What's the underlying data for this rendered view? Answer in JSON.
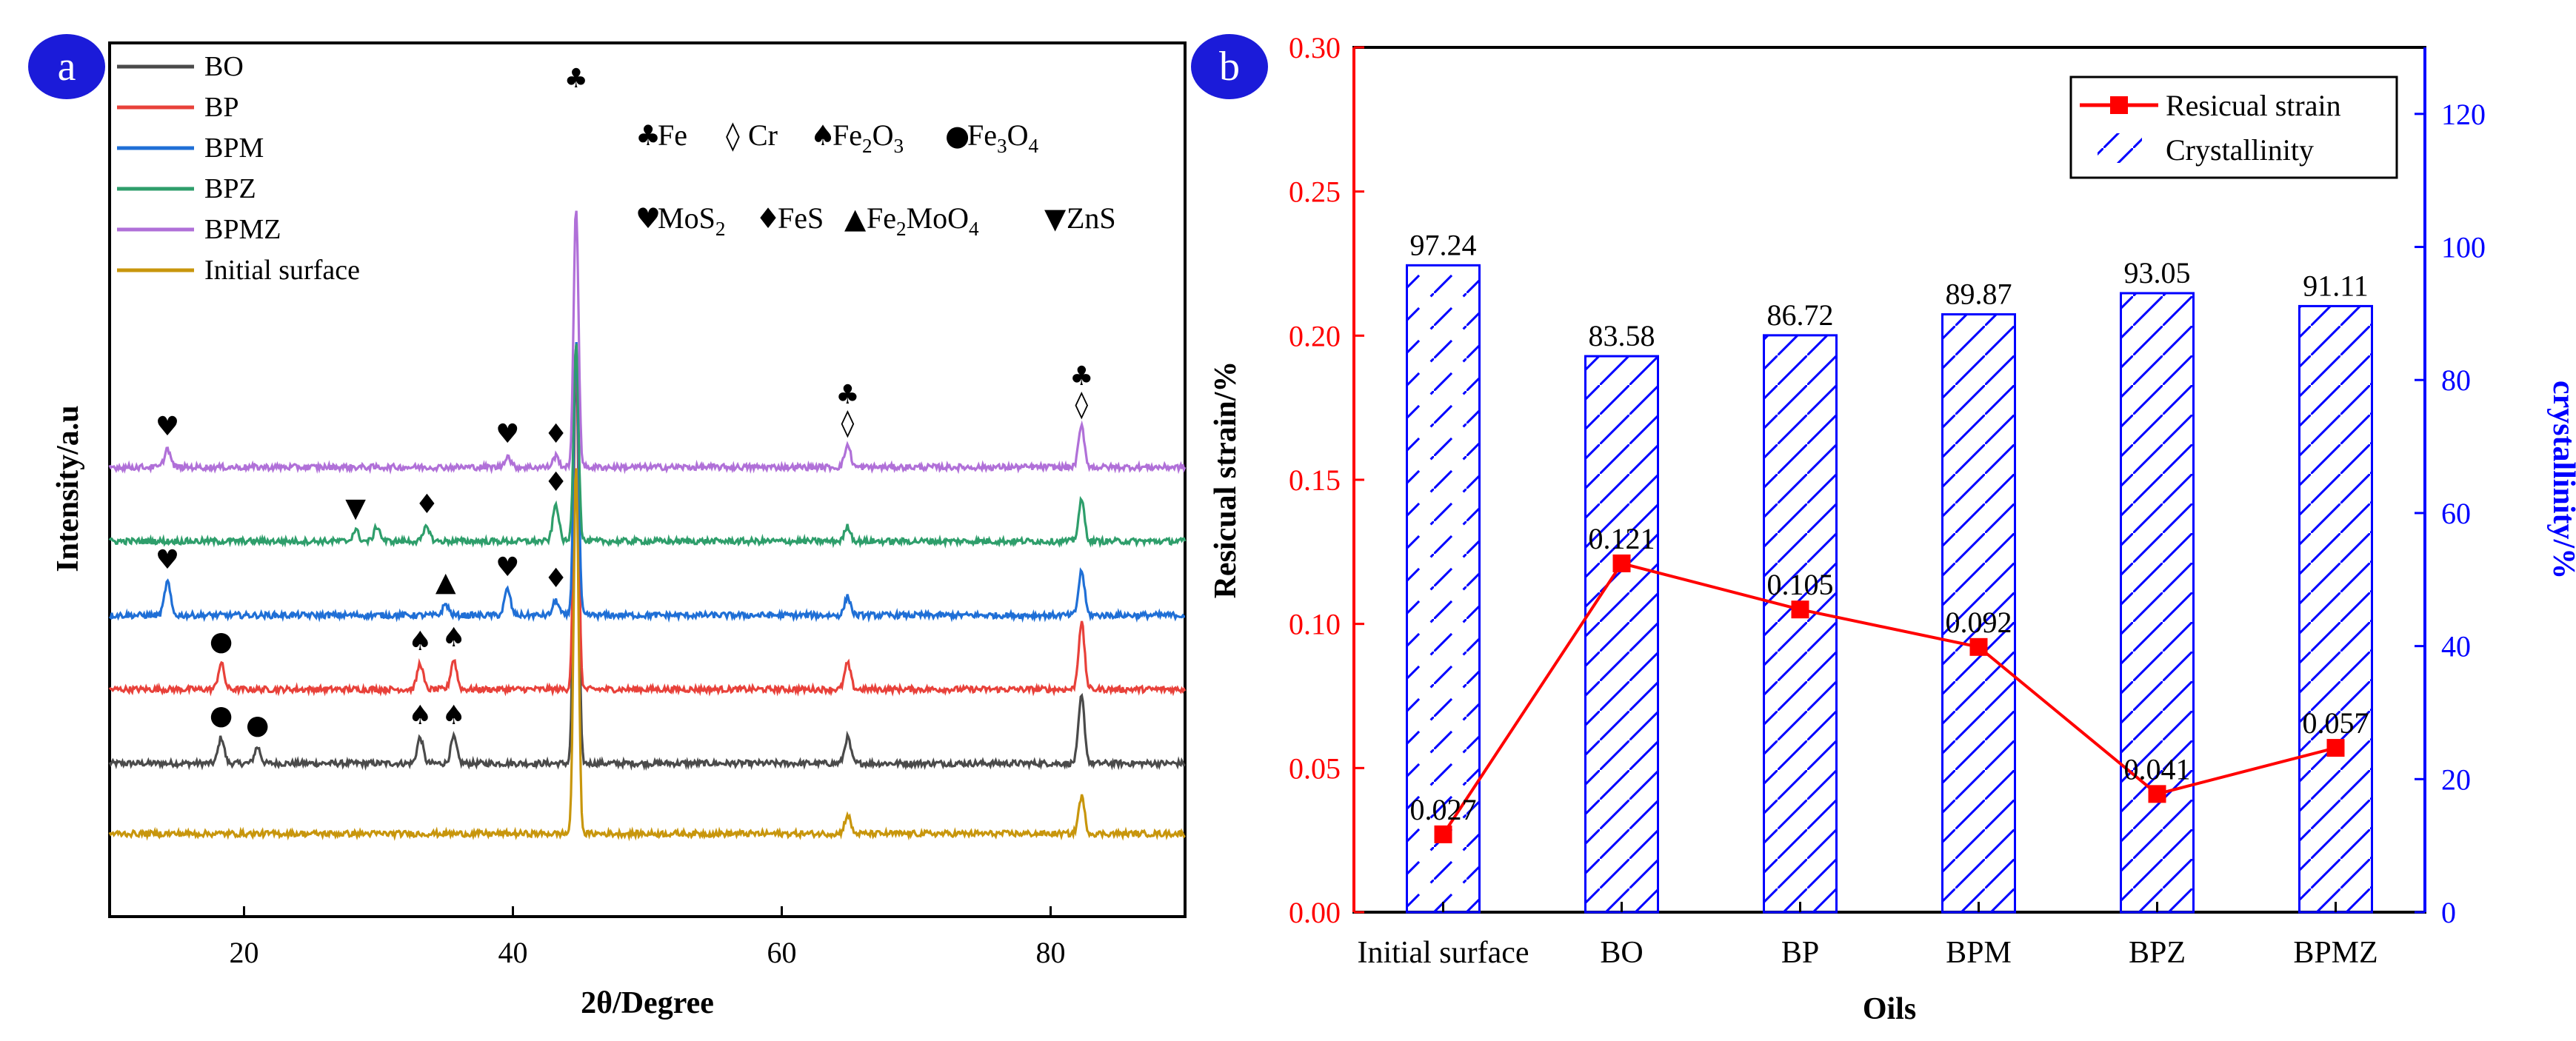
{
  "panels": {
    "a": {
      "label": "a"
    },
    "b": {
      "label": "b"
    }
  },
  "colors": {
    "badge": "#1b1bd9",
    "blue": "#0000ff",
    "red": "#ff0000",
    "BO": "#4a4a4a",
    "BP": "#e8413a",
    "BPM": "#1f6fd6",
    "BPZ": "#2e9e6b",
    "BPMZ": "#b070d8",
    "Initial": "#c8960c"
  },
  "chart_data": [
    {
      "type": "line",
      "panel": "a",
      "xlabel": "2θ/Degree",
      "ylabel": "Intensity/a.u",
      "xlim": [
        10,
        90
      ],
      "xticks": [
        20,
        40,
        60,
        80
      ],
      "series": [
        {
          "name": "BO",
          "offset": 0.95,
          "peaks": [
            [
              18.3,
              0.35
            ],
            [
              21.0,
              0.22
            ],
            [
              33.1,
              0.35
            ],
            [
              35.6,
              0.35
            ],
            [
              44.7,
              5.6
            ],
            [
              64.9,
              0.35
            ],
            [
              82.3,
              0.9
            ]
          ]
        },
        {
          "name": "BP",
          "offset": 1.95,
          "peaks": [
            [
              18.3,
              0.35
            ],
            [
              33.1,
              0.35
            ],
            [
              35.6,
              0.4
            ],
            [
              44.7,
              4.6
            ],
            [
              64.9,
              0.35
            ],
            [
              82.3,
              0.9
            ]
          ]
        },
        {
          "name": "BPM",
          "offset": 2.95,
          "peaks": [
            [
              14.3,
              0.45
            ],
            [
              35.0,
              0.15
            ],
            [
              39.6,
              0.35
            ],
            [
              43.2,
              0.2
            ],
            [
              44.7,
              3.7
            ],
            [
              64.9,
              0.25
            ],
            [
              82.3,
              0.6
            ]
          ]
        },
        {
          "name": "BPZ",
          "offset": 3.95,
          "peaks": [
            [
              28.3,
              0.15
            ],
            [
              29.9,
              0.2
            ],
            [
              33.6,
              0.2
            ],
            [
              43.2,
              0.5
            ],
            [
              44.7,
              2.7
            ],
            [
              64.9,
              0.2
            ],
            [
              82.3,
              0.55
            ]
          ]
        },
        {
          "name": "BPMZ",
          "offset": 4.95,
          "peaks": [
            [
              14.3,
              0.25
            ],
            [
              39.6,
              0.15
            ],
            [
              43.2,
              0.15
            ],
            [
              44.7,
              3.5
            ],
            [
              64.9,
              0.3
            ],
            [
              82.3,
              0.55
            ]
          ]
        },
        {
          "name": "Initial surface",
          "offset": 0.0,
          "peaks": [
            [
              44.7,
              5.0
            ],
            [
              64.9,
              0.25
            ],
            [
              82.3,
              0.5
            ]
          ]
        }
      ],
      "legend_pos": "top-left",
      "phase_legend": [
        {
          "symbol": "♣",
          "text": "Fe"
        },
        {
          "symbol": "◊",
          "text": "Cr"
        },
        {
          "symbol": "♠",
          "text": "Fe₂O₃"
        },
        {
          "symbol": "●",
          "text": "Fe₃O₄"
        },
        {
          "symbol": "♥",
          "text": "MoS₂"
        },
        {
          "symbol": "♦",
          "text": "FeS"
        },
        {
          "symbol": "▲",
          "text": "Fe₂MoO₄"
        },
        {
          "symbol": "▼",
          "text": "ZnS"
        }
      ],
      "annotations": [
        {
          "symbol": "♣",
          "x": 44.7,
          "series": "top"
        },
        {
          "symbol": "♣",
          "x": 64.9,
          "series": "BPMZ",
          "level": 2
        },
        {
          "symbol": "◊",
          "x": 64.9,
          "series": "BPMZ",
          "level": 1
        },
        {
          "symbol": "♣",
          "x": 82.3,
          "series": "BPMZ",
          "level": 2
        },
        {
          "symbol": "◊",
          "x": 82.3,
          "series": "BPMZ",
          "level": 1
        },
        {
          "symbol": "♥",
          "x": 14.3,
          "series": "BPMZ",
          "level": 1
        },
        {
          "symbol": "♥",
          "x": 39.6,
          "series": "BPMZ",
          "level": 1
        },
        {
          "symbol": "♦",
          "x": 43.2,
          "series": "BPMZ",
          "level": 1
        },
        {
          "symbol": "▼",
          "x": 28.3,
          "series": "BPZ",
          "level": 1
        },
        {
          "symbol": "♦",
          "x": 33.6,
          "series": "BPZ",
          "level": 1
        },
        {
          "symbol": "♦",
          "x": 43.2,
          "series": "BPZ",
          "level": 1
        },
        {
          "symbol": "♥",
          "x": 14.3,
          "series": "BPM",
          "level": 1
        },
        {
          "symbol": "▲",
          "x": 35.0,
          "series": "BPM",
          "level": 1
        },
        {
          "symbol": "♥",
          "x": 39.6,
          "series": "BPM",
          "level": 1
        },
        {
          "symbol": "♦",
          "x": 43.2,
          "series": "BPM",
          "level": 1
        },
        {
          "symbol": "●",
          "x": 18.3,
          "series": "BP",
          "level": 1
        },
        {
          "symbol": "♠",
          "x": 33.1,
          "series": "BP",
          "level": 1
        },
        {
          "symbol": "♠",
          "x": 35.6,
          "series": "BP",
          "level": 1
        },
        {
          "symbol": "●",
          "x": 18.3,
          "series": "BO",
          "level": 1
        },
        {
          "symbol": "●",
          "x": 21.0,
          "series": "BO",
          "level": 1
        },
        {
          "symbol": "♠",
          "x": 33.1,
          "series": "BO",
          "level": 1
        },
        {
          "symbol": "♠",
          "x": 35.6,
          "series": "BO",
          "level": 1
        }
      ]
    },
    {
      "type": "bar",
      "panel": "b",
      "categories": [
        "Initial surface",
        "BO",
        "BP",
        "BPM",
        "BPZ",
        "BPMZ"
      ],
      "series": [
        {
          "name": "Resicual strain",
          "type": "line",
          "axis": "left",
          "values": [
            0.027,
            0.121,
            0.105,
            0.092,
            0.041,
            0.057
          ],
          "labels": [
            "0.027",
            "0.121",
            "0.105",
            "0.092",
            "0.041",
            "0.057"
          ]
        },
        {
          "name": "Crystallinity",
          "type": "bar",
          "axis": "right",
          "values": [
            97.24,
            83.58,
            86.72,
            89.87,
            93.05,
            91.11
          ],
          "labels": [
            "97.24",
            "83.58",
            "86.72",
            "89.87",
            "93.05",
            "91.11"
          ]
        }
      ],
      "xlabel": "Oils",
      "ylabel": "Resicual strain/%",
      "y2label": "crystallinity/%",
      "ylim": [
        0,
        0.3
      ],
      "y2lim": [
        0,
        130
      ],
      "yticks": [
        "0.00",
        "0.05",
        "0.10",
        "0.15",
        "0.20",
        "0.25",
        "0.30"
      ],
      "y2ticks": [
        "0",
        "20",
        "40",
        "60",
        "80",
        "100",
        "120"
      ],
      "legend_pos": "top-right"
    }
  ]
}
